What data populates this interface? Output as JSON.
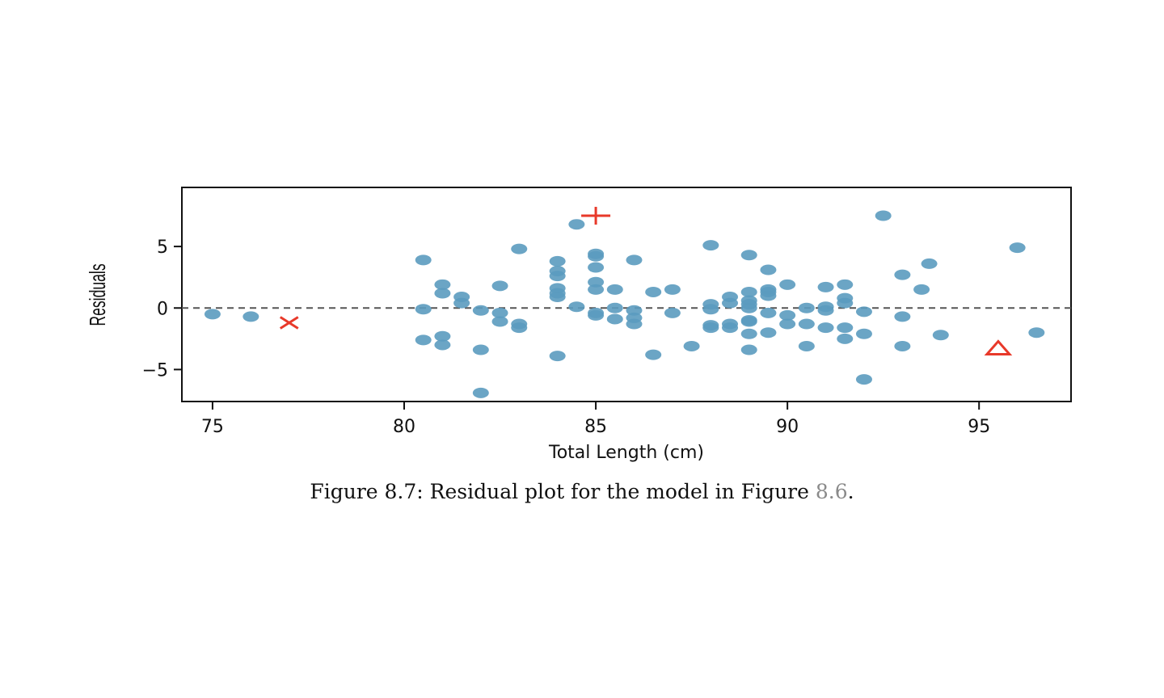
{
  "caption": {
    "prefix": "Figure 8.7: Residual plot for the model in Figure ",
    "ref": "8.6",
    "suffix": "."
  },
  "chart_data": {
    "type": "scatter",
    "title": "",
    "xlabel": "Total Length (cm)",
    "ylabel": "Residuals",
    "xlim": [
      74.2,
      97.4
    ],
    "ylim": [
      -7.6,
      9.8
    ],
    "xticks": [
      75,
      80,
      85,
      90,
      95
    ],
    "yticks": [
      -5,
      0,
      5
    ],
    "reference_line": {
      "y": 0,
      "style": "dashed"
    },
    "colors": {
      "points": "#5b9bbf",
      "highlight": "#e8392a"
    },
    "points": [
      [
        75,
        -0.5
      ],
      [
        76,
        -0.7
      ],
      [
        80.5,
        3.9
      ],
      [
        80.5,
        -0.1
      ],
      [
        80.5,
        -2.6
      ],
      [
        81,
        1.9
      ],
      [
        81,
        1.2
      ],
      [
        81,
        -2.3
      ],
      [
        81,
        -3.0
      ],
      [
        81.5,
        0.9
      ],
      [
        81.5,
        0.4
      ],
      [
        82,
        -0.2
      ],
      [
        82,
        -3.4
      ],
      [
        82,
        -6.9
      ],
      [
        82.5,
        1.8
      ],
      [
        82.5,
        -0.4
      ],
      [
        82.5,
        -1.1
      ],
      [
        83,
        4.8
      ],
      [
        83,
        -1.3
      ],
      [
        83,
        -1.6
      ],
      [
        84,
        3.8
      ],
      [
        84,
        3.0
      ],
      [
        84,
        2.6
      ],
      [
        84,
        1.6
      ],
      [
        84,
        1.2
      ],
      [
        84,
        0.9
      ],
      [
        84,
        -3.9
      ],
      [
        84.5,
        6.8
      ],
      [
        84.5,
        0.1
      ],
      [
        85,
        4.4
      ],
      [
        85,
        4.2
      ],
      [
        85,
        3.3
      ],
      [
        85,
        2.1
      ],
      [
        85,
        1.5
      ],
      [
        85,
        -0.4
      ],
      [
        85,
        -0.6
      ],
      [
        85.5,
        1.5
      ],
      [
        85.5,
        0.0
      ],
      [
        85.5,
        -0.9
      ],
      [
        86,
        3.9
      ],
      [
        86,
        -0.2
      ],
      [
        86,
        -0.8
      ],
      [
        86,
        -1.3
      ],
      [
        86.5,
        1.3
      ],
      [
        86.5,
        -3.8
      ],
      [
        87,
        1.5
      ],
      [
        87,
        -0.4
      ],
      [
        87.5,
        -3.1
      ],
      [
        88,
        5.1
      ],
      [
        88,
        0.3
      ],
      [
        88,
        -0.1
      ],
      [
        88,
        -1.4
      ],
      [
        88,
        -1.6
      ],
      [
        88.5,
        0.9
      ],
      [
        88.5,
        0.4
      ],
      [
        88.5,
        -1.3
      ],
      [
        88.5,
        -1.6
      ],
      [
        89,
        4.3
      ],
      [
        89,
        1.3
      ],
      [
        89,
        0.6
      ],
      [
        89,
        0.3
      ],
      [
        89,
        0.0
      ],
      [
        89,
        -1.0
      ],
      [
        89,
        -1.1
      ],
      [
        89,
        -2.1
      ],
      [
        89,
        -3.4
      ],
      [
        89.5,
        3.1
      ],
      [
        89.5,
        1.5
      ],
      [
        89.5,
        1.3
      ],
      [
        89.5,
        1.0
      ],
      [
        89.5,
        -0.4
      ],
      [
        89.5,
        -2.0
      ],
      [
        90,
        1.9
      ],
      [
        90,
        -0.6
      ],
      [
        90,
        -1.3
      ],
      [
        90.5,
        0.0
      ],
      [
        90.5,
        -1.3
      ],
      [
        90.5,
        -3.1
      ],
      [
        91,
        1.7
      ],
      [
        91,
        0.1
      ],
      [
        91,
        -0.2
      ],
      [
        91,
        -1.6
      ],
      [
        91.5,
        1.9
      ],
      [
        91.5,
        0.8
      ],
      [
        91.5,
        0.4
      ],
      [
        91.5,
        -1.6
      ],
      [
        91.5,
        -2.5
      ],
      [
        92,
        -0.3
      ],
      [
        92,
        -2.1
      ],
      [
        92,
        -5.8
      ],
      [
        92.5,
        7.5
      ],
      [
        93,
        2.7
      ],
      [
        93,
        -0.7
      ],
      [
        93,
        -3.1
      ],
      [
        93.5,
        1.5
      ],
      [
        93.7,
        3.6
      ],
      [
        94,
        -2.2
      ],
      [
        96,
        4.9
      ],
      [
        96.5,
        -2.0
      ]
    ],
    "highlighted": [
      {
        "marker": "x",
        "x": 77,
        "y": -1.2
      },
      {
        "marker": "plus",
        "x": 85,
        "y": 7.5
      },
      {
        "marker": "triangle",
        "x": 95.5,
        "y": -3.3
      }
    ]
  }
}
